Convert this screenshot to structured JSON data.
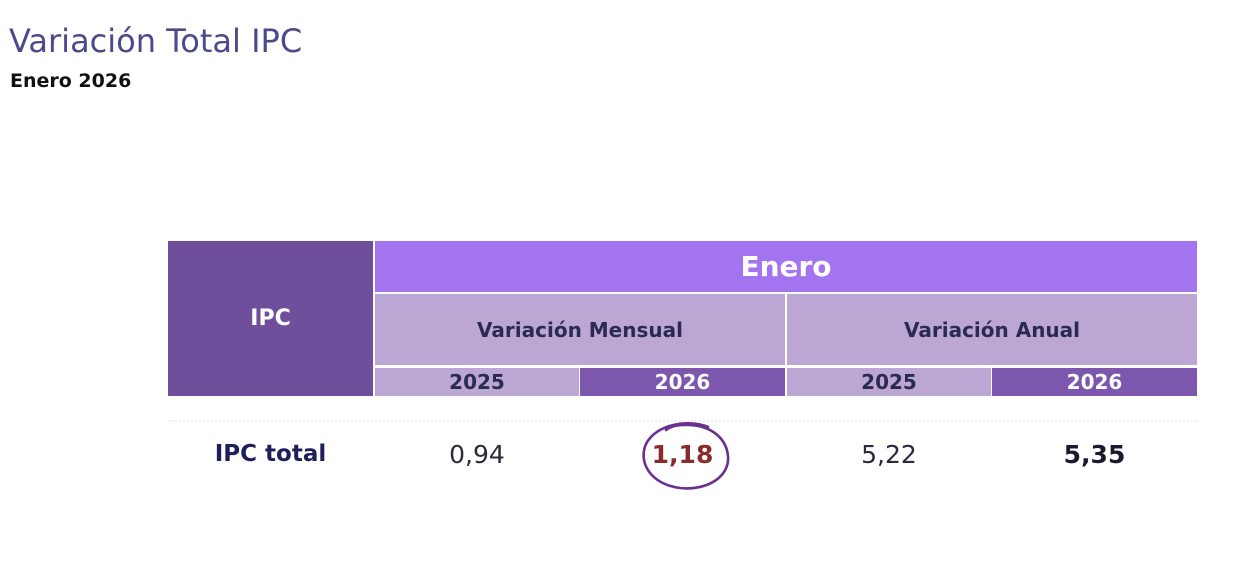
{
  "header": {
    "title": "Variación Total IPC",
    "subtitle": "Enero 2026"
  },
  "table": {
    "row_header": "IPC",
    "group_header": "Enero",
    "subgroups": [
      "Variación Mensual",
      "Variación Anual"
    ],
    "years": [
      "2025",
      "2026",
      "2025",
      "2026"
    ],
    "rows": [
      {
        "label": "IPC total",
        "values": [
          "0,94",
          "1,18",
          "5,22",
          "5,35"
        ]
      }
    ]
  },
  "annotation": {
    "circled_value": "1,18",
    "circle_color": "#6b2f8f"
  }
}
